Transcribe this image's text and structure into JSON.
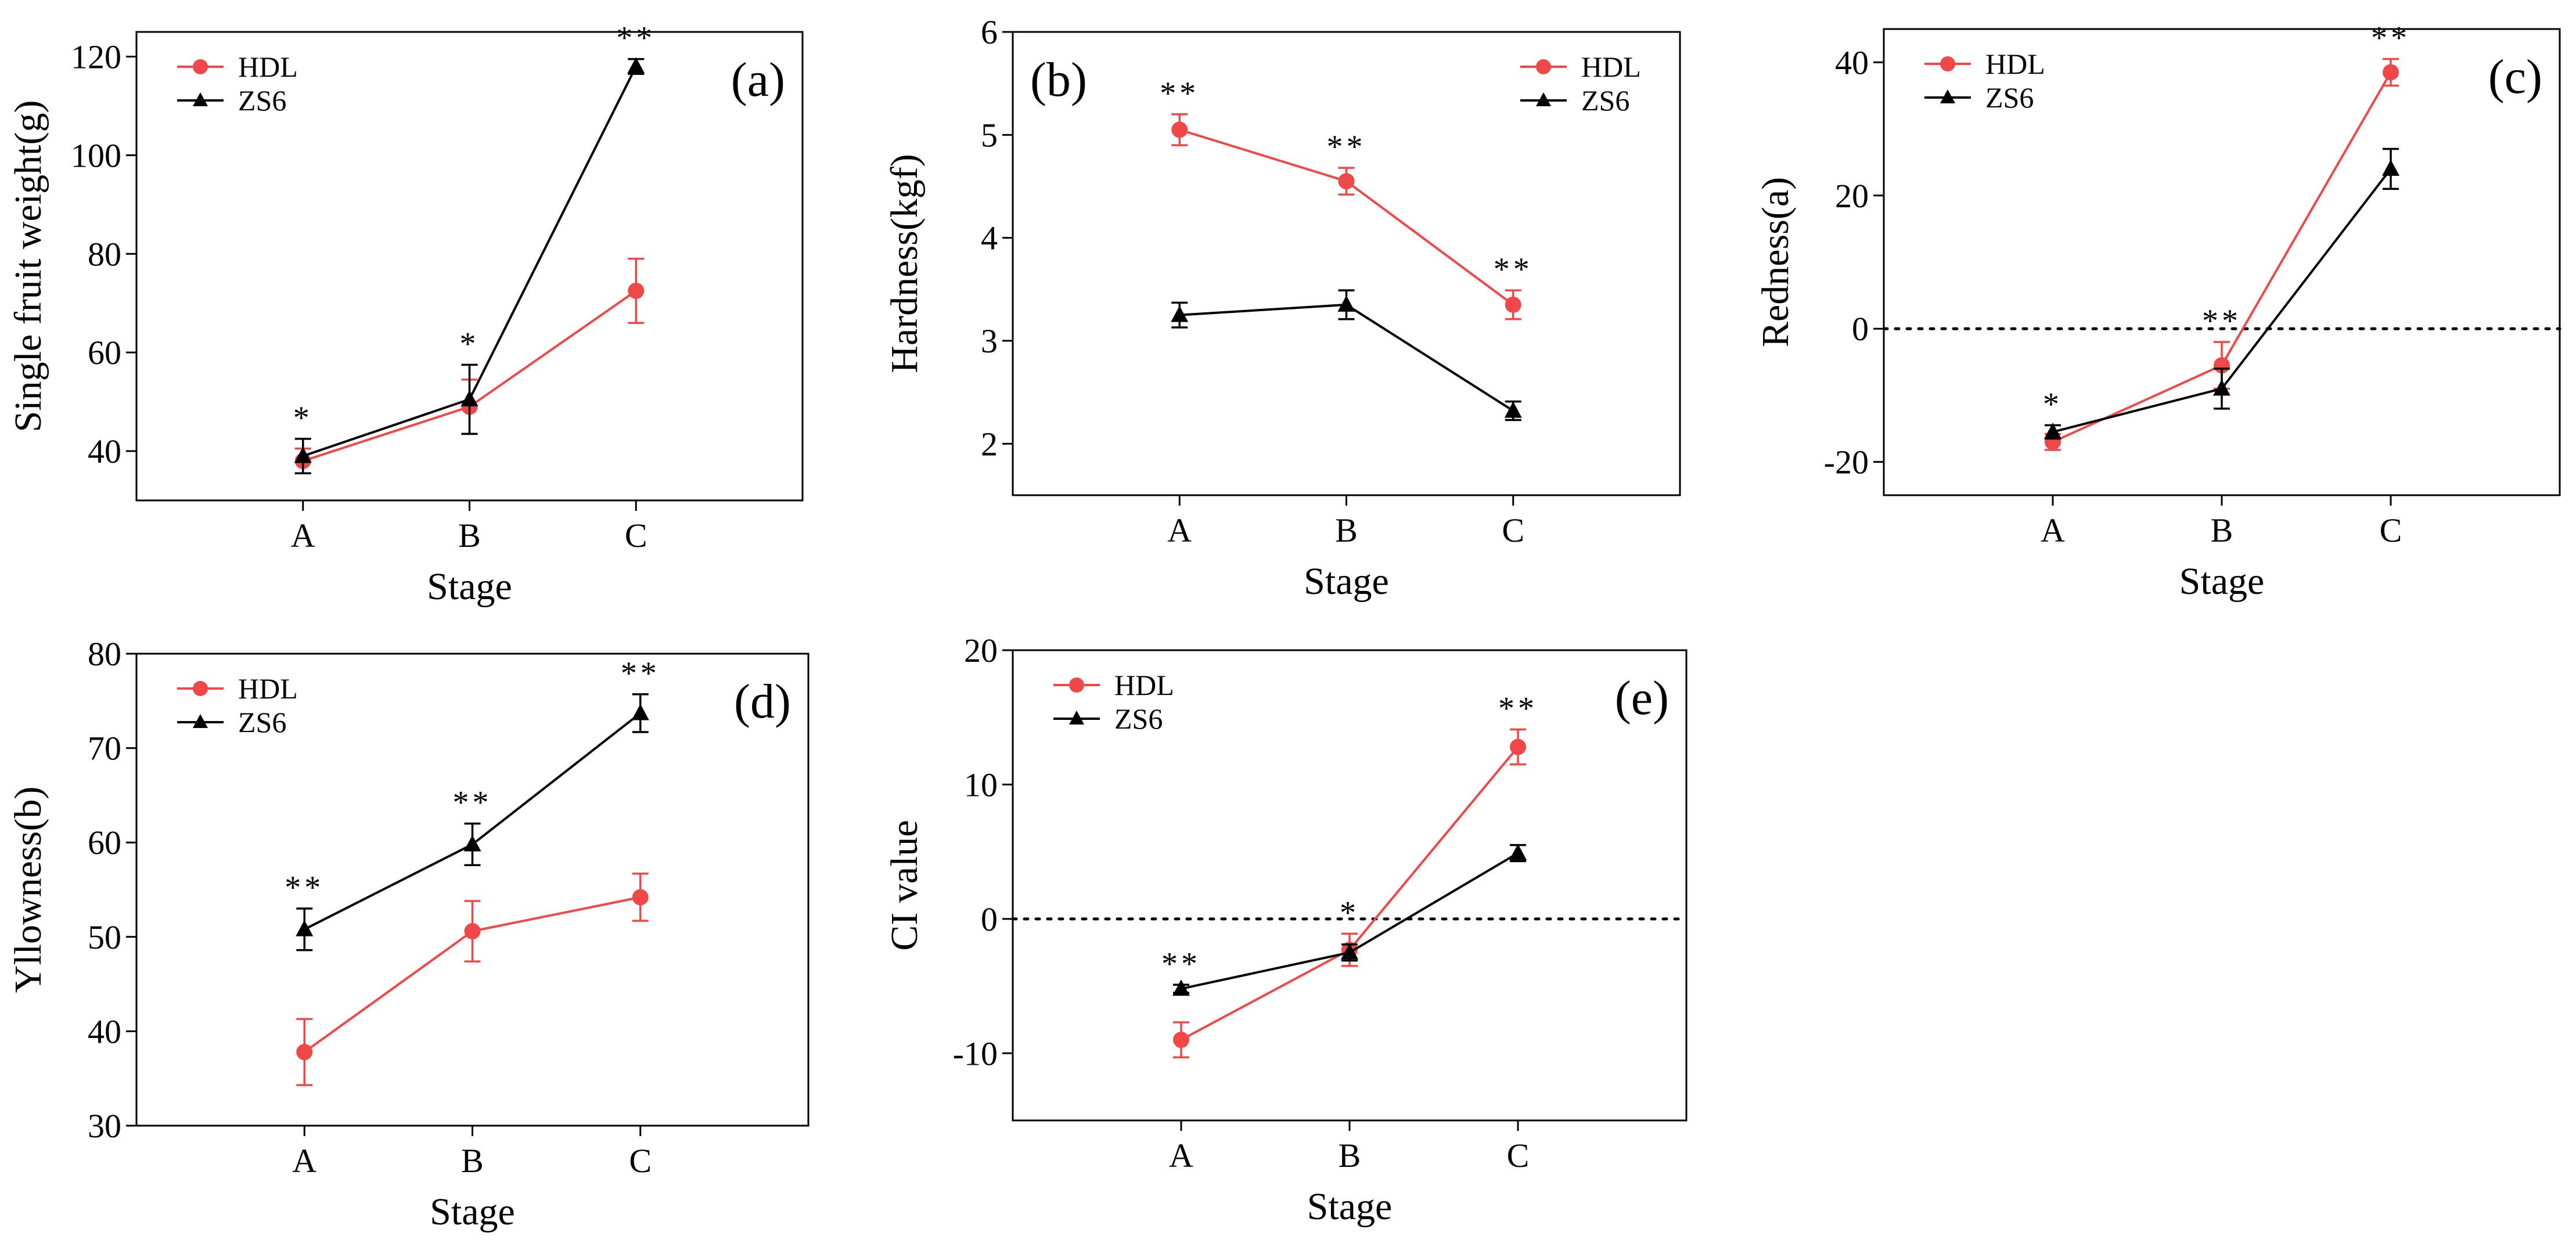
{
  "colors": {
    "HDL": "#f04848",
    "ZS6": "#000000"
  },
  "chart_data": [
    {
      "type": "line",
      "panel_label": "(a)",
      "xlabel": "Stage",
      "ylabel": "Single fruit weight(g)",
      "categories": [
        "A",
        "B",
        "C"
      ],
      "ylim": [
        30,
        125
      ],
      "yticks": [
        40,
        60,
        80,
        100,
        120
      ],
      "grid": false,
      "legend_position": "top-left",
      "series": [
        {
          "name": "HDL",
          "marker": "circle",
          "values": [
            38.0,
            49.0,
            72.5
          ],
          "errors": [
            2.5,
            5.5,
            6.5
          ]
        },
        {
          "name": "ZS6",
          "marker": "triangle",
          "values": [
            39.0,
            50.5,
            118.0
          ],
          "errors": [
            3.5,
            7.0,
            1.5
          ]
        }
      ],
      "significance": [
        "*",
        "*",
        "**"
      ]
    },
    {
      "type": "line",
      "panel_label": "(b)",
      "xlabel": "Stage",
      "ylabel": "Hardness(kgf)",
      "categories": [
        "A",
        "B",
        "C"
      ],
      "ylim": [
        1.5,
        6
      ],
      "yticks": [
        2,
        3,
        4,
        5,
        6
      ],
      "grid": false,
      "legend_position": "top-right",
      "series": [
        {
          "name": "HDL",
          "marker": "circle",
          "values": [
            5.05,
            4.55,
            3.35
          ],
          "errors": [
            0.15,
            0.13,
            0.14
          ]
        },
        {
          "name": "ZS6",
          "marker": "triangle",
          "values": [
            3.25,
            3.35,
            2.32
          ],
          "errors": [
            0.12,
            0.14,
            0.09
          ]
        }
      ],
      "significance": [
        "**",
        "**",
        "**"
      ]
    },
    {
      "type": "line",
      "panel_label": "(c)",
      "xlabel": "Stage",
      "ylabel": "Redness(a)",
      "categories": [
        "A",
        "B",
        "C"
      ],
      "ylim": [
        -25,
        45
      ],
      "yticks": [
        -20,
        0,
        20,
        40
      ],
      "reference_line": 0,
      "grid": false,
      "legend_position": "top-left",
      "series": [
        {
          "name": "HDL",
          "marker": "circle",
          "values": [
            -17.0,
            -5.5,
            38.5
          ],
          "errors": [
            1.2,
            3.5,
            2.0
          ]
        },
        {
          "name": "ZS6",
          "marker": "triangle",
          "values": [
            -15.5,
            -9.0,
            24.0
          ],
          "errors": [
            1.0,
            3.0,
            3.0
          ]
        }
      ],
      "significance": [
        "*",
        "**",
        "**"
      ]
    },
    {
      "type": "line",
      "panel_label": "(d)",
      "xlabel": "Stage",
      "ylabel": "Yllowness(b)",
      "categories": [
        "A",
        "B",
        "C"
      ],
      "ylim": [
        30,
        80
      ],
      "yticks": [
        30,
        40,
        50,
        60,
        70,
        80
      ],
      "grid": false,
      "legend_position": "top-left",
      "series": [
        {
          "name": "HDL",
          "marker": "circle",
          "values": [
            37.8,
            50.6,
            54.2
          ],
          "errors": [
            3.5,
            3.2,
            2.5
          ]
        },
        {
          "name": "ZS6",
          "marker": "triangle",
          "values": [
            50.8,
            59.8,
            73.7
          ],
          "errors": [
            2.2,
            2.2,
            2.0
          ]
        }
      ],
      "significance": [
        "**",
        "**",
        "**"
      ]
    },
    {
      "type": "line",
      "panel_label": "(e)",
      "xlabel": "Stage",
      "ylabel": "CI value",
      "categories": [
        "A",
        "B",
        "C"
      ],
      "ylim": [
        -15,
        20
      ],
      "yticks": [
        -10,
        0,
        10,
        20
      ],
      "reference_line": 0,
      "grid": false,
      "legend_position": "top-left",
      "series": [
        {
          "name": "HDL",
          "marker": "circle",
          "values": [
            -9.0,
            -2.3,
            12.8
          ],
          "errors": [
            1.3,
            1.2,
            1.3
          ]
        },
        {
          "name": "ZS6",
          "marker": "triangle",
          "values": [
            -5.2,
            -2.5,
            4.9
          ],
          "errors": [
            0.3,
            0.6,
            0.6
          ]
        }
      ],
      "significance": [
        "**",
        "*",
        "**"
      ]
    }
  ]
}
